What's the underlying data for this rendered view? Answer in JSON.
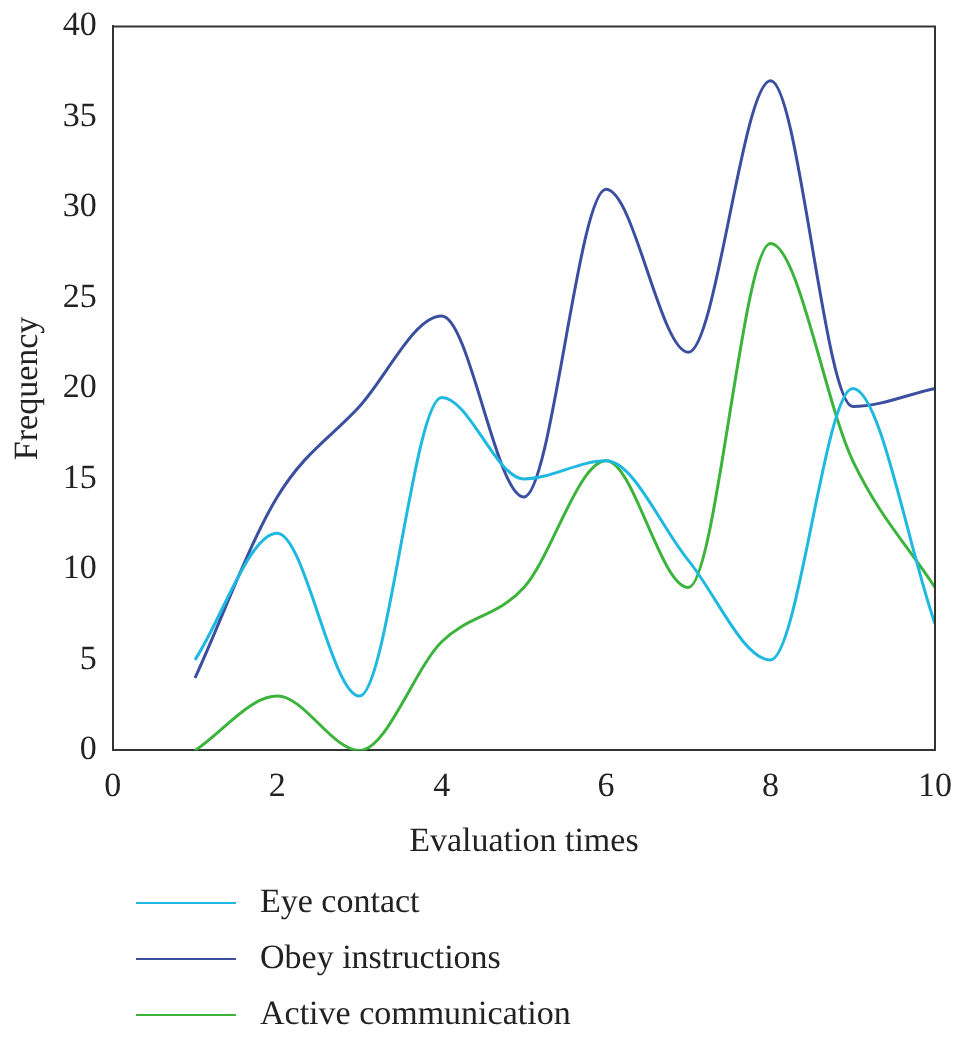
{
  "chart_data": {
    "type": "line",
    "xlabel": "Evaluation times",
    "ylabel": "Frequency",
    "x": [
      1,
      2,
      3,
      4,
      5,
      6,
      7,
      8,
      9,
      10
    ],
    "xlim": [
      0,
      10
    ],
    "xticks": [
      0,
      2,
      4,
      6,
      8,
      10
    ],
    "ylim": [
      0,
      40
    ],
    "yticks": [
      0,
      5,
      10,
      15,
      20,
      25,
      30,
      35,
      40
    ],
    "grid": false,
    "legend": "bottom",
    "marker": "none",
    "line_style": "solid",
    "series": [
      {
        "name": "Eye contact",
        "color": "#1fb8e0",
        "values": [
          5,
          12,
          3,
          19.5,
          15,
          16,
          10.5,
          5,
          20,
          7
        ]
      },
      {
        "name": "Obey instructions",
        "color": "#3a4fa0",
        "values": [
          4,
          14,
          19,
          24,
          14,
          31,
          22,
          37,
          19,
          20
        ]
      },
      {
        "name": "Active communication",
        "color": "#3cb43c",
        "values": [
          0,
          3,
          0,
          6,
          9,
          16,
          9,
          28,
          16,
          9
        ]
      }
    ]
  }
}
